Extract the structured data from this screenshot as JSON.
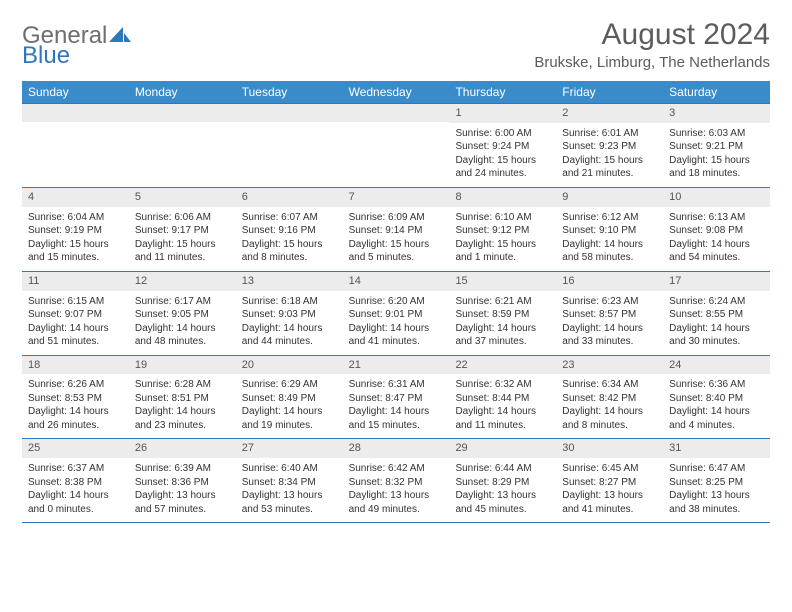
{
  "logo": {
    "text_general": "General",
    "text_blue": "Blue"
  },
  "header": {
    "title": "August 2024",
    "subtitle": "Brukske, Limburg, The Netherlands"
  },
  "colors": {
    "header_bg": "#3a8bc9",
    "border": "#2d78bd",
    "daynum_bg": "#ececec"
  },
  "day_labels": [
    "Sunday",
    "Monday",
    "Tuesday",
    "Wednesday",
    "Thursday",
    "Friday",
    "Saturday"
  ],
  "weeks": [
    [
      null,
      null,
      null,
      null,
      {
        "n": "1",
        "sr": "6:00 AM",
        "ss": "9:24 PM",
        "dl": "15 hours and 24 minutes."
      },
      {
        "n": "2",
        "sr": "6:01 AM",
        "ss": "9:23 PM",
        "dl": "15 hours and 21 minutes."
      },
      {
        "n": "3",
        "sr": "6:03 AM",
        "ss": "9:21 PM",
        "dl": "15 hours and 18 minutes."
      }
    ],
    [
      {
        "n": "4",
        "sr": "6:04 AM",
        "ss": "9:19 PM",
        "dl": "15 hours and 15 minutes."
      },
      {
        "n": "5",
        "sr": "6:06 AM",
        "ss": "9:17 PM",
        "dl": "15 hours and 11 minutes."
      },
      {
        "n": "6",
        "sr": "6:07 AM",
        "ss": "9:16 PM",
        "dl": "15 hours and 8 minutes."
      },
      {
        "n": "7",
        "sr": "6:09 AM",
        "ss": "9:14 PM",
        "dl": "15 hours and 5 minutes."
      },
      {
        "n": "8",
        "sr": "6:10 AM",
        "ss": "9:12 PM",
        "dl": "15 hours and 1 minute."
      },
      {
        "n": "9",
        "sr": "6:12 AM",
        "ss": "9:10 PM",
        "dl": "14 hours and 58 minutes."
      },
      {
        "n": "10",
        "sr": "6:13 AM",
        "ss": "9:08 PM",
        "dl": "14 hours and 54 minutes."
      }
    ],
    [
      {
        "n": "11",
        "sr": "6:15 AM",
        "ss": "9:07 PM",
        "dl": "14 hours and 51 minutes."
      },
      {
        "n": "12",
        "sr": "6:17 AM",
        "ss": "9:05 PM",
        "dl": "14 hours and 48 minutes."
      },
      {
        "n": "13",
        "sr": "6:18 AM",
        "ss": "9:03 PM",
        "dl": "14 hours and 44 minutes."
      },
      {
        "n": "14",
        "sr": "6:20 AM",
        "ss": "9:01 PM",
        "dl": "14 hours and 41 minutes."
      },
      {
        "n": "15",
        "sr": "6:21 AM",
        "ss": "8:59 PM",
        "dl": "14 hours and 37 minutes."
      },
      {
        "n": "16",
        "sr": "6:23 AM",
        "ss": "8:57 PM",
        "dl": "14 hours and 33 minutes."
      },
      {
        "n": "17",
        "sr": "6:24 AM",
        "ss": "8:55 PM",
        "dl": "14 hours and 30 minutes."
      }
    ],
    [
      {
        "n": "18",
        "sr": "6:26 AM",
        "ss": "8:53 PM",
        "dl": "14 hours and 26 minutes."
      },
      {
        "n": "19",
        "sr": "6:28 AM",
        "ss": "8:51 PM",
        "dl": "14 hours and 23 minutes."
      },
      {
        "n": "20",
        "sr": "6:29 AM",
        "ss": "8:49 PM",
        "dl": "14 hours and 19 minutes."
      },
      {
        "n": "21",
        "sr": "6:31 AM",
        "ss": "8:47 PM",
        "dl": "14 hours and 15 minutes."
      },
      {
        "n": "22",
        "sr": "6:32 AM",
        "ss": "8:44 PM",
        "dl": "14 hours and 11 minutes."
      },
      {
        "n": "23",
        "sr": "6:34 AM",
        "ss": "8:42 PM",
        "dl": "14 hours and 8 minutes."
      },
      {
        "n": "24",
        "sr": "6:36 AM",
        "ss": "8:40 PM",
        "dl": "14 hours and 4 minutes."
      }
    ],
    [
      {
        "n": "25",
        "sr": "6:37 AM",
        "ss": "8:38 PM",
        "dl": "14 hours and 0 minutes."
      },
      {
        "n": "26",
        "sr": "6:39 AM",
        "ss": "8:36 PM",
        "dl": "13 hours and 57 minutes."
      },
      {
        "n": "27",
        "sr": "6:40 AM",
        "ss": "8:34 PM",
        "dl": "13 hours and 53 minutes."
      },
      {
        "n": "28",
        "sr": "6:42 AM",
        "ss": "8:32 PM",
        "dl": "13 hours and 49 minutes."
      },
      {
        "n": "29",
        "sr": "6:44 AM",
        "ss": "8:29 PM",
        "dl": "13 hours and 45 minutes."
      },
      {
        "n": "30",
        "sr": "6:45 AM",
        "ss": "8:27 PM",
        "dl": "13 hours and 41 minutes."
      },
      {
        "n": "31",
        "sr": "6:47 AM",
        "ss": "8:25 PM",
        "dl": "13 hours and 38 minutes."
      }
    ]
  ],
  "labels": {
    "sunrise_prefix": "Sunrise: ",
    "sunset_prefix": "Sunset: ",
    "daylight_prefix": "Daylight: "
  }
}
